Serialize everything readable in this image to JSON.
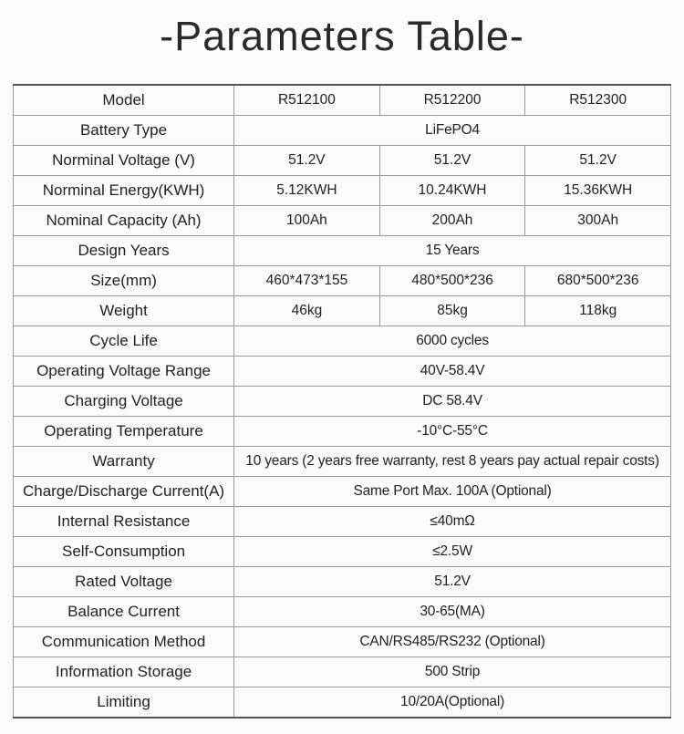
{
  "title": "-Parameters Table-",
  "rows": [
    {
      "label": "Model",
      "values": [
        "R512100",
        "R512200",
        "R512300"
      ]
    },
    {
      "label": "Battery Type",
      "value": "LiFePO4"
    },
    {
      "label": "Norminal Voltage (V)",
      "values": [
        "51.2V",
        "51.2V",
        "51.2V"
      ]
    },
    {
      "label": "Norminal Energy(KWH)",
      "values": [
        "5.12KWH",
        "10.24KWH",
        "15.36KWH"
      ]
    },
    {
      "label": "Nominal Capacity (Ah)",
      "values": [
        "100Ah",
        "200Ah",
        "300Ah"
      ]
    },
    {
      "label": "Design Years",
      "value": "15 Years"
    },
    {
      "label": "Size(mm)",
      "values": [
        "460*473*155",
        "480*500*236",
        "680*500*236"
      ]
    },
    {
      "label": "Weight",
      "values": [
        "46kg",
        "85kg",
        "118kg"
      ]
    },
    {
      "label": "Cycle Life",
      "value": "6000 cycles"
    },
    {
      "label": "Operating Voltage Range",
      "value": "40V-58.4V"
    },
    {
      "label": "Charging Voltage",
      "value": "DC 58.4V"
    },
    {
      "label": "Operating Temperature",
      "value": "-10°C-55°C"
    },
    {
      "label": "Warranty",
      "value": "10 years (2 years free warranty, rest 8 years pay actual repair costs)"
    },
    {
      "label": "Charge/Discharge Current(A)",
      "value": "Same Port Max. 100A (Optional)"
    },
    {
      "label": "Internal Resistance",
      "value": "≤40mΩ"
    },
    {
      "label": "Self-Consumption",
      "value": "≤2.5W"
    },
    {
      "label": "Rated Voltage",
      "value": "51.2V"
    },
    {
      "label": "Balance Current",
      "value": "30-65(MA)"
    },
    {
      "label": "Communication Method",
      "value": "CAN/RS485/RS232 (Optional)"
    },
    {
      "label": "Information Storage",
      "value": "500 Strip"
    },
    {
      "label": "Limiting",
      "value": "10/20A(Optional)"
    }
  ]
}
